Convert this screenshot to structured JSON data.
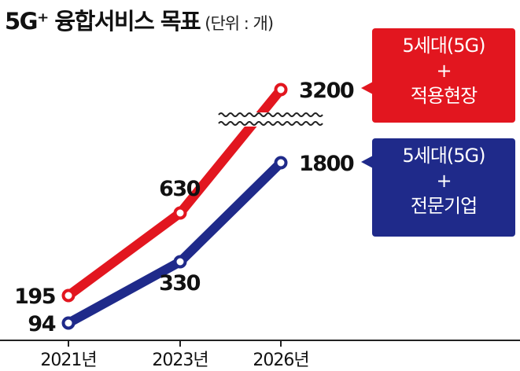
{
  "header": {
    "title": "5G⁺ 융합서비스 목표",
    "unit": "(단위 : 개)"
  },
  "chart_data": {
    "type": "line",
    "categories": [
      "2021년",
      "2023년",
      "2026년"
    ],
    "series": [
      {
        "name": "5세대(5G) + 적용현장",
        "values": [
          195,
          630,
          3200
        ],
        "labels": [
          "195",
          "630",
          "3200"
        ],
        "color": "#e2161f"
      },
      {
        "name": "5세대(5G) + 전문기업",
        "values": [
          94,
          330,
          1800
        ],
        "labels": [
          "94",
          "330",
          "1800"
        ],
        "color": "#1f2a8a"
      }
    ],
    "axis_break": true,
    "grid": false,
    "legend_position": "right"
  },
  "callouts": {
    "red": {
      "line1": "5세대(5G)",
      "line2": "+",
      "line3": "적용현장"
    },
    "blue": {
      "line1": "5세대(5G)",
      "line2": "+",
      "line3": "전문기업"
    }
  }
}
